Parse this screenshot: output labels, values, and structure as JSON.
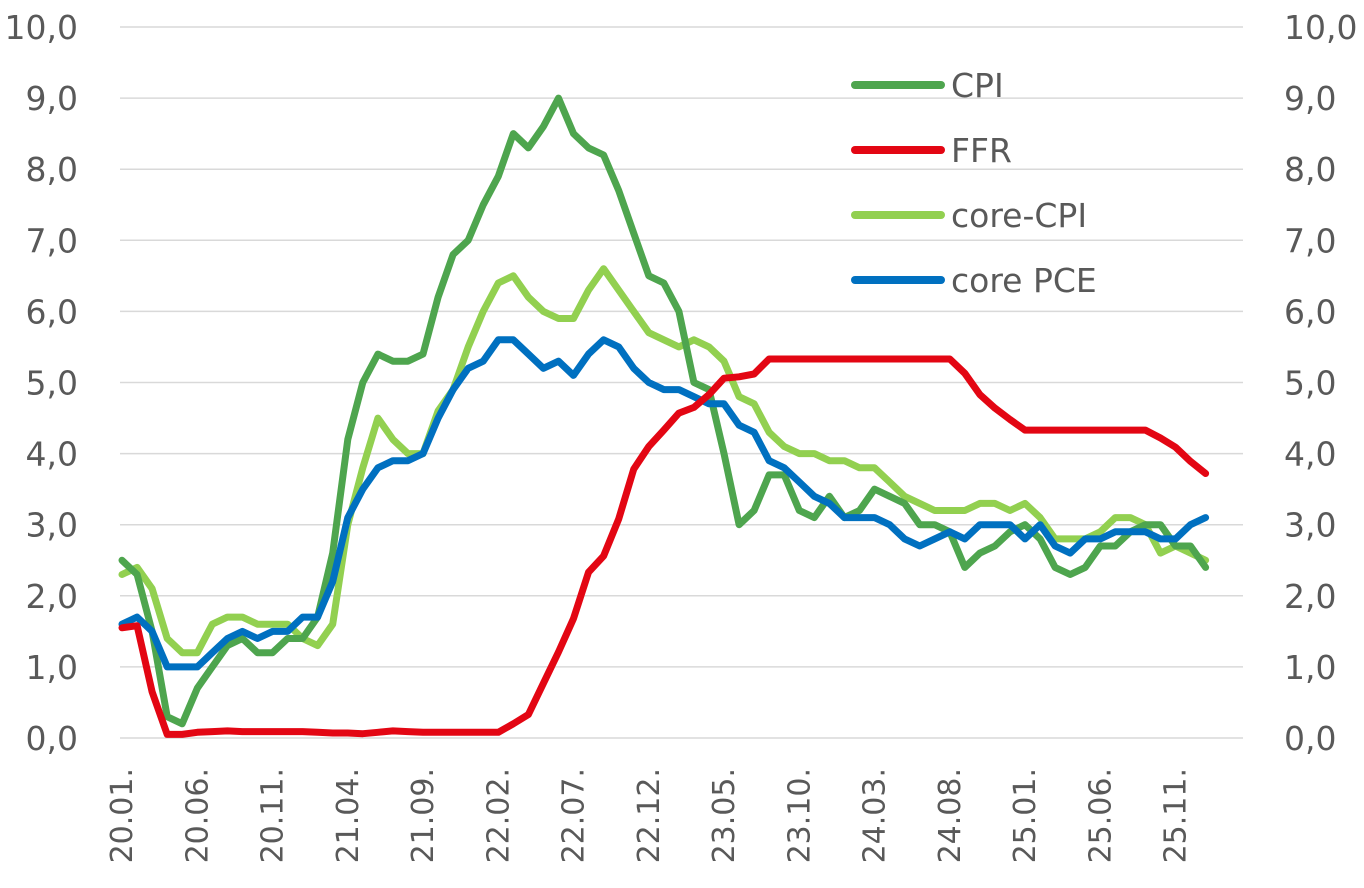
{
  "chart_data": {
    "type": "line",
    "title": "",
    "xlabel": "",
    "ylabel": "",
    "ylim": [
      0,
      10
    ],
    "y_ticks": [
      "0,0",
      "1,0",
      "2,0",
      "3,0",
      "4,0",
      "5,0",
      "6,0",
      "7,0",
      "8,0",
      "9,0",
      "10,0"
    ],
    "x_tick_labels": [
      "20.01.",
      "20.06.",
      "20.11.",
      "21.04.",
      "21.09.",
      "22.02.",
      "22.07.",
      "22.12.",
      "23.05.",
      "23.10.",
      "24.03.",
      "24.08.",
      "25.01.",
      "25.06.",
      "25.11."
    ],
    "grid": true,
    "secondary_axis": true,
    "legend_position": "top-right",
    "months": [
      "20.01.",
      "20.02.",
      "20.03.",
      "20.04.",
      "20.05.",
      "20.06.",
      "20.07.",
      "20.08.",
      "20.09.",
      "20.10.",
      "20.11.",
      "20.12.",
      "21.01.",
      "21.02.",
      "21.03.",
      "21.04.",
      "21.05.",
      "21.06.",
      "21.07.",
      "21.08.",
      "21.09.",
      "21.10.",
      "21.11.",
      "21.12.",
      "22.01.",
      "22.02.",
      "22.03.",
      "22.04.",
      "22.05.",
      "22.06.",
      "22.07.",
      "22.08.",
      "22.09.",
      "22.10.",
      "22.11.",
      "22.12.",
      "23.01.",
      "23.02.",
      "23.03.",
      "23.04.",
      "23.05.",
      "23.06.",
      "23.07.",
      "23.08.",
      "23.09.",
      "23.10.",
      "23.11.",
      "23.12.",
      "24.01.",
      "24.02.",
      "24.03.",
      "24.04.",
      "24.05.",
      "24.06.",
      "24.07.",
      "24.08.",
      "24.09.",
      "24.10.",
      "24.11.",
      "24.12.",
      "25.01.",
      "25.02.",
      "25.03.",
      "25.04.",
      "25.05.",
      "25.06.",
      "25.07.",
      "25.08.",
      "25.09.",
      "25.10.",
      "25.11.",
      "25.12.",
      "26.01."
    ],
    "series": [
      {
        "name": "CPI",
        "color": "#4ea54e",
        "values": [
          2.5,
          2.3,
          1.5,
          0.3,
          0.2,
          0.7,
          1.0,
          1.3,
          1.4,
          1.2,
          1.2,
          1.4,
          1.4,
          1.7,
          2.6,
          4.2,
          5.0,
          5.4,
          5.3,
          5.3,
          5.4,
          6.2,
          6.8,
          7.0,
          7.5,
          7.9,
          8.5,
          8.3,
          8.6,
          9.0,
          8.5,
          8.3,
          8.2,
          7.7,
          7.1,
          6.5,
          6.4,
          6.0,
          5.0,
          4.9,
          4.0,
          3.0,
          3.2,
          3.7,
          3.7,
          3.2,
          3.1,
          3.4,
          3.1,
          3.2,
          3.5,
          3.4,
          3.3,
          3.0,
          3.0,
          2.9,
          2.4,
          2.6,
          2.7,
          2.9,
          3.0,
          2.8,
          2.4,
          2.3,
          2.4,
          2.7,
          2.7,
          2.9,
          3.0,
          3.0,
          2.7,
          2.7,
          2.4
        ]
      },
      {
        "name": "FFR",
        "color": "#e30613",
        "values": [
          1.55,
          1.58,
          0.65,
          0.05,
          0.05,
          0.08,
          0.09,
          0.1,
          0.09,
          0.09,
          0.09,
          0.09,
          0.09,
          0.08,
          0.07,
          0.07,
          0.06,
          0.08,
          0.1,
          0.09,
          0.08,
          0.08,
          0.08,
          0.08,
          0.08,
          0.08,
          0.2,
          0.33,
          0.77,
          1.21,
          1.68,
          2.33,
          2.56,
          3.08,
          3.78,
          4.1,
          4.33,
          4.57,
          4.65,
          4.83,
          5.06,
          5.08,
          5.12,
          5.33,
          5.33,
          5.33,
          5.33,
          5.33,
          5.33,
          5.33,
          5.33,
          5.33,
          5.33,
          5.33,
          5.33,
          5.33,
          5.13,
          4.83,
          4.64,
          4.48,
          4.33,
          4.33,
          4.33,
          4.33,
          4.33,
          4.33,
          4.33,
          4.33,
          4.33,
          4.22,
          4.09,
          3.89,
          3.72
        ]
      },
      {
        "name": "core-CPI",
        "color": "#92d050",
        "values": [
          2.3,
          2.4,
          2.1,
          1.4,
          1.2,
          1.2,
          1.6,
          1.7,
          1.7,
          1.6,
          1.6,
          1.6,
          1.4,
          1.3,
          1.6,
          3.0,
          3.8,
          4.5,
          4.2,
          4.0,
          4.0,
          4.6,
          4.9,
          5.5,
          6.0,
          6.4,
          6.5,
          6.2,
          6.0,
          5.9,
          5.9,
          6.3,
          6.6,
          6.3,
          6.0,
          5.7,
          5.6,
          5.5,
          5.6,
          5.5,
          5.3,
          4.8,
          4.7,
          4.3,
          4.1,
          4.0,
          4.0,
          3.9,
          3.9,
          3.8,
          3.8,
          3.6,
          3.4,
          3.3,
          3.2,
          3.2,
          3.2,
          3.3,
          3.3,
          3.2,
          3.3,
          3.1,
          2.8,
          2.8,
          2.8,
          2.9,
          3.1,
          3.1,
          3.0,
          2.6,
          2.7,
          2.6,
          2.5
        ]
      },
      {
        "name": "core PCE",
        "color": "#0070c0",
        "values": [
          1.6,
          1.7,
          1.5,
          1.0,
          1.0,
          1.0,
          1.2,
          1.4,
          1.5,
          1.4,
          1.5,
          1.5,
          1.7,
          1.7,
          2.2,
          3.1,
          3.5,
          3.8,
          3.9,
          3.9,
          4.0,
          4.5,
          4.9,
          5.2,
          5.3,
          5.6,
          5.6,
          5.4,
          5.2,
          5.3,
          5.1,
          5.4,
          5.6,
          5.5,
          5.2,
          5.0,
          4.9,
          4.9,
          4.8,
          4.7,
          4.7,
          4.4,
          4.3,
          3.9,
          3.8,
          3.6,
          3.4,
          3.3,
          3.1,
          3.1,
          3.1,
          3.0,
          2.8,
          2.7,
          2.8,
          2.9,
          2.8,
          3.0,
          3.0,
          3.0,
          2.8,
          3.0,
          2.7,
          2.6,
          2.8,
          2.8,
          2.9,
          2.9,
          2.9,
          2.8,
          2.8,
          3.0,
          3.1
        ]
      }
    ]
  }
}
